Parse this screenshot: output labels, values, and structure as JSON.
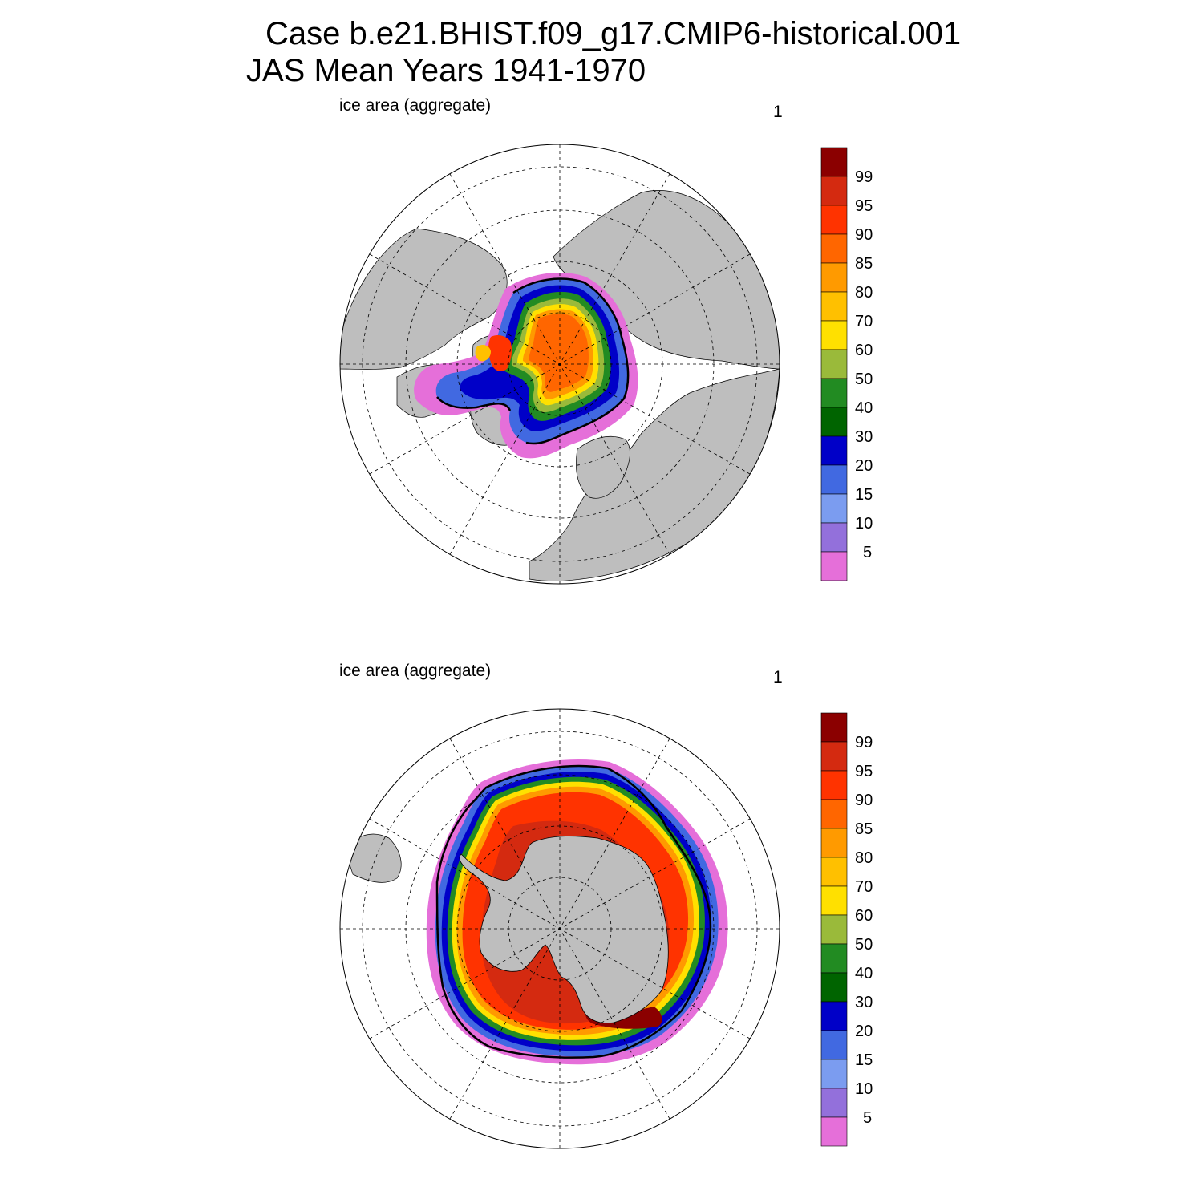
{
  "title": {
    "line1": "Case b.e21.BHIST.f09_g17.CMIP6-historical.001",
    "line2": "JAS Mean   Years 1941-1970"
  },
  "palette": [
    "#e56fd9",
    "#9370db",
    "#7b9cf0",
    "#4169e1",
    "#0000c8",
    "#006400",
    "#228b22",
    "#9aba3a",
    "#ffe000",
    "#ffc000",
    "#ff9a00",
    "#ff6600",
    "#ff3300",
    "#d42a10",
    "#8b0000"
  ],
  "land_color": "#bebebe",
  "panels": [
    {
      "hemisphere": "north",
      "left_label": "ice area  (aggregate)",
      "right_label": "1",
      "colorbar": {
        "levels": [
          "5",
          "10",
          "15",
          "20",
          "30",
          "40",
          "50",
          "60",
          "70",
          "80",
          "85",
          "90",
          "95",
          "99"
        ]
      }
    },
    {
      "hemisphere": "south",
      "left_label": "ice area  (aggregate)",
      "right_label": "1",
      "colorbar": {
        "levels": [
          "5",
          "10",
          "15",
          "20",
          "30",
          "40",
          "50",
          "60",
          "70",
          "80",
          "85",
          "90",
          "95",
          "99"
        ]
      }
    }
  ]
}
